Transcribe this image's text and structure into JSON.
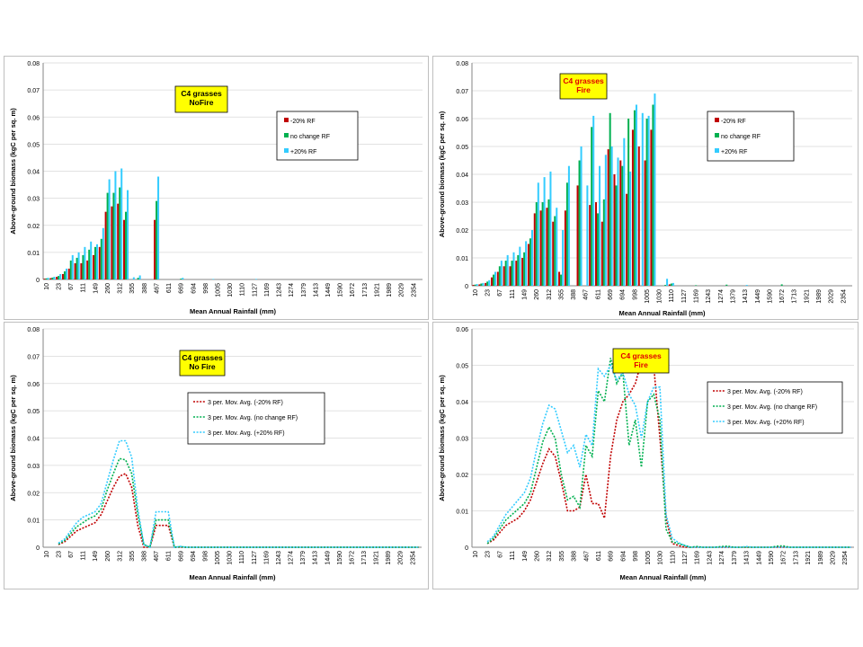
{
  "colors": {
    "minus": "#C00000",
    "nochange": "#00B050",
    "plus": "#33CCFF",
    "label_bg": "#FFFF00",
    "fire_text": "#E00000",
    "grid": "#D9D9D9",
    "axis": "#868686",
    "panel_border": "#BFBFBF"
  },
  "legend_labels": {
    "bar": [
      "-20% RF",
      "no change RF",
      "+20% RF"
    ],
    "line": [
      "3 per. Mov. Avg. (-20% RF)",
      "3 per. Mov. Avg. (no change RF)",
      "3 per. Mov. Avg. (+20% RF)"
    ]
  },
  "chart_data": [
    {
      "id": "bar-nofire",
      "type": "bar",
      "label_lines": [
        "C4 grasses",
        "NoFire"
      ],
      "xlabel": "Mean Annual Rainfall (mm)",
      "ylabel": "Above-ground biomass (kgC per sq. m)",
      "ylim": [
        0,
        0.08
      ],
      "yticks": [
        "0",
        "0.01",
        "0.02",
        "0.03",
        "0.04",
        "0.05",
        "0.06",
        "0.07",
        "0.08"
      ],
      "xtick_labels": [
        "10",
        "23",
        "67",
        "111",
        "149",
        "260",
        "312",
        "355",
        "388",
        "467",
        "611",
        "669",
        "694",
        "998",
        "1005",
        "1030",
        "1110",
        "1127",
        "1169",
        "1243",
        "1274",
        "1379",
        "1413",
        "1449",
        "1590",
        "1672",
        "1713",
        "1921",
        "1989",
        "2029",
        "2354"
      ],
      "n_categories": 62,
      "series": [
        {
          "legend_index": 0,
          "values": [
            0.0003,
            0.0005,
            0.001,
            0.002,
            0.004,
            0.006,
            0.006,
            0.007,
            0.009,
            0.012,
            0.025,
            0.027,
            0.028,
            0.022,
            0,
            0,
            0,
            0,
            0.022,
            0,
            0,
            0,
            0,
            0,
            0,
            0,
            0,
            0,
            0,
            0,
            0,
            0,
            0,
            0,
            0,
            0,
            0,
            0,
            0,
            0,
            0,
            0,
            0,
            0,
            0,
            0,
            0,
            0,
            0,
            0,
            0,
            0,
            0,
            0,
            0,
            0,
            0,
            0,
            0,
            0,
            0,
            0
          ]
        },
        {
          "legend_index": 1,
          "values": [
            0.0004,
            0.0007,
            0.0013,
            0.003,
            0.007,
            0.008,
            0.009,
            0.011,
            0.012,
            0.015,
            0.032,
            0.032,
            0.034,
            0.025,
            0,
            0.0006,
            0,
            0,
            0.029,
            0,
            0,
            0,
            0.0003,
            0,
            0,
            0,
            0,
            0,
            0,
            0,
            0,
            0,
            0,
            0,
            0,
            0,
            0,
            0,
            0,
            0,
            0,
            0,
            0,
            0,
            0,
            0,
            0,
            0,
            0,
            0,
            0,
            0,
            0,
            0,
            0,
            0,
            0,
            0,
            0,
            0,
            0,
            0
          ]
        },
        {
          "legend_index": 2,
          "values": [
            0.0006,
            0.001,
            0.002,
            0.004,
            0.009,
            0.01,
            0.012,
            0.014,
            0.013,
            0.019,
            0.037,
            0.04,
            0.041,
            0.033,
            0.0008,
            0.0015,
            0,
            0,
            0.038,
            0,
            0,
            0,
            0.0006,
            0,
            0,
            0,
            0,
            0.0002,
            0,
            0,
            0,
            0,
            0,
            0,
            0.0002,
            0,
            0,
            0,
            0,
            0,
            0,
            0,
            0,
            0,
            0,
            0,
            0,
            0,
            0,
            0,
            0,
            0,
            0,
            0,
            0,
            0,
            0,
            0,
            0,
            0,
            0,
            0
          ]
        }
      ]
    },
    {
      "id": "bar-fire",
      "type": "bar",
      "label_lines": [
        "C4 grasses",
        "Fire"
      ],
      "xlabel": "Mean Annual Rainfall (mm)",
      "ylabel": "Above-ground biomass (kgC per sq. m)",
      "ylim": [
        0,
        0.08
      ],
      "yticks": [
        "0",
        "0.01",
        "0.02",
        "0.03",
        "0.04",
        "0.05",
        "0.06",
        "0.07",
        "0.08"
      ],
      "xtick_labels": [
        "10",
        "23",
        "67",
        "111",
        "149",
        "260",
        "312",
        "355",
        "388",
        "467",
        "611",
        "669",
        "694",
        "998",
        "1005",
        "1030",
        "1110",
        "1127",
        "1169",
        "1243",
        "1274",
        "1379",
        "1413",
        "1449",
        "1590",
        "1672",
        "1713",
        "1921",
        "1989",
        "2029",
        "2354"
      ],
      "n_categories": 62,
      "series": [
        {
          "legend_index": 0,
          "values": [
            0.0003,
            0.0005,
            0.001,
            0.003,
            0.005,
            0.007,
            0.007,
            0.009,
            0.01,
            0.015,
            0.026,
            0.027,
            0.028,
            0.023,
            0.005,
            0.027,
            0,
            0.036,
            0,
            0.029,
            0.03,
            0.023,
            0.049,
            0.04,
            0.045,
            0.033,
            0.056,
            0.05,
            0.045,
            0.056,
            0,
            0,
            0.0005,
            0,
            0,
            0,
            0,
            0,
            0,
            0,
            0,
            0,
            0,
            0,
            0,
            0,
            0,
            0,
            0,
            0,
            0,
            0,
            0,
            0,
            0,
            0,
            0,
            0,
            0,
            0,
            0,
            0
          ]
        },
        {
          "legend_index": 1,
          "values": [
            0.0004,
            0.0008,
            0.0015,
            0.004,
            0.007,
            0.009,
            0.009,
            0.011,
            0.012,
            0.017,
            0.03,
            0.03,
            0.031,
            0.025,
            0.004,
            0.037,
            0,
            0.045,
            0,
            0.057,
            0.026,
            0.031,
            0.062,
            0.036,
            0.043,
            0.06,
            0.063,
            0,
            0.06,
            0.065,
            0,
            0.0003,
            0.0008,
            0,
            0,
            0,
            0.0002,
            0,
            0,
            0,
            0,
            0.0004,
            0,
            0,
            0,
            0,
            0,
            0,
            0,
            0,
            0.0005,
            0,
            0,
            0,
            0,
            0,
            0,
            0,
            0,
            0,
            0,
            0
          ]
        },
        {
          "legend_index": 2,
          "values": [
            0.0006,
            0.001,
            0.002,
            0.005,
            0.009,
            0.011,
            0.012,
            0.014,
            0.016,
            0.02,
            0.037,
            0.039,
            0.041,
            0.028,
            0.02,
            0.043,
            0,
            0.05,
            0.036,
            0.061,
            0.043,
            0.047,
            0.05,
            0.046,
            0.053,
            0.041,
            0.065,
            0.062,
            0.061,
            0.069,
            0,
            0.0025,
            0.001,
            0,
            0,
            0,
            0,
            0,
            0,
            0,
            0,
            0,
            0,
            0,
            0.0003,
            0,
            0,
            0,
            0,
            0,
            0,
            0,
            0,
            0,
            0,
            0,
            0,
            0,
            0,
            0,
            0,
            0
          ]
        }
      ]
    },
    {
      "id": "line-nofire",
      "type": "line",
      "label_lines": [
        "C4 grasses",
        "No Fire"
      ],
      "xlabel": "Mean Annual Rainfall (mm)",
      "ylabel": "Above-ground biomass (kgC per sq. m)",
      "ylim": [
        0,
        0.08
      ],
      "yticks": [
        "0",
        "0.01",
        "0.02",
        "0.03",
        "0.04",
        "0.05",
        "0.06",
        "0.07",
        "0.08"
      ],
      "xtick_labels": [
        "10",
        "23",
        "67",
        "111",
        "149",
        "260",
        "312",
        "355",
        "388",
        "467",
        "611",
        "669",
        "694",
        "998",
        "1005",
        "1030",
        "1110",
        "1127",
        "1169",
        "1243",
        "1274",
        "1379",
        "1413",
        "1449",
        "1590",
        "1672",
        "1713",
        "1921",
        "1989",
        "2029",
        "2354"
      ],
      "n_categories": 62,
      "series": [
        {
          "legend_index": 0,
          "values": [
            null,
            null,
            0.001,
            0.002,
            0.004,
            0.006,
            0.007,
            0.008,
            0.009,
            0.012,
            0.017,
            0.022,
            0.026,
            0.027,
            0.022,
            0.008,
            0,
            0,
            0.008,
            0.008,
            0.008,
            0,
            0,
            0,
            0,
            0,
            0,
            0,
            0,
            0,
            0,
            0,
            0,
            0,
            0,
            0,
            0,
            0,
            0,
            0,
            0,
            0,
            0,
            0,
            0,
            0,
            0,
            0,
            0,
            0,
            0,
            0,
            0,
            0,
            0,
            0,
            0,
            0,
            0,
            0,
            0,
            0
          ]
        },
        {
          "legend_index": 1,
          "values": [
            null,
            null,
            0.0012,
            0.0025,
            0.005,
            0.0075,
            0.009,
            0.0105,
            0.0115,
            0.014,
            0.021,
            0.027,
            0.0325,
            0.032,
            0.027,
            0.012,
            0.001,
            0,
            0.01,
            0.01,
            0.01,
            0,
            0.0002,
            0,
            0,
            0,
            0,
            0,
            0,
            0,
            0,
            0,
            0,
            0,
            0,
            0,
            0,
            0,
            0,
            0,
            0,
            0,
            0,
            0,
            0,
            0,
            0,
            0,
            0,
            0,
            0,
            0,
            0,
            0,
            0,
            0,
            0,
            0,
            0,
            0,
            0,
            0
          ]
        },
        {
          "legend_index": 2,
          "values": [
            null,
            null,
            0.0015,
            0.003,
            0.006,
            0.009,
            0.011,
            0.012,
            0.013,
            0.016,
            0.024,
            0.032,
            0.039,
            0.039,
            0.033,
            0.014,
            0.001,
            0,
            0.013,
            0.013,
            0.013,
            0,
            0.0003,
            0,
            0,
            0,
            0,
            0,
            0,
            0,
            0,
            0,
            0,
            0,
            0,
            0,
            0,
            0,
            0,
            0,
            0,
            0,
            0,
            0,
            0,
            0,
            0,
            0,
            0,
            0,
            0,
            0,
            0,
            0,
            0,
            0,
            0,
            0,
            0,
            0,
            0,
            0
          ]
        }
      ]
    },
    {
      "id": "line-fire",
      "type": "line",
      "label_lines": [
        "C4 grasses",
        "Fire"
      ],
      "xlabel": "Mean Annual Rainfall (mm)",
      "ylabel": "Above-ground biomass (kgC per sq. m)",
      "ylim": [
        0,
        0.06
      ],
      "yticks": [
        "0",
        "0.01",
        "0.02",
        "0.03",
        "0.04",
        "0.05",
        "0.06"
      ],
      "xtick_labels": [
        "10",
        "23",
        "67",
        "111",
        "149",
        "260",
        "312",
        "355",
        "388",
        "467",
        "611",
        "669",
        "694",
        "998",
        "1005",
        "1030",
        "1110",
        "1127",
        "1169",
        "1243",
        "1274",
        "1379",
        "1413",
        "1449",
        "1590",
        "1672",
        "1713",
        "1921",
        "1989",
        "2029",
        "2354"
      ],
      "n_categories": 62,
      "series": [
        {
          "legend_index": 0,
          "values": [
            null,
            null,
            0.001,
            0.002,
            0.004,
            0.006,
            0.007,
            0.008,
            0.01,
            0.013,
            0.018,
            0.023,
            0.027,
            0.025,
            0.018,
            0.01,
            0.01,
            0.011,
            0.02,
            0.012,
            0.012,
            0.008,
            0.025,
            0.035,
            0.04,
            0.042,
            0.045,
            0.051,
            0.051,
            0.05,
            0.03,
            0.008,
            0.001,
            0.0005,
            0,
            0,
            0,
            0,
            0,
            0,
            0,
            0,
            0,
            0,
            0,
            0,
            0,
            0,
            0,
            0,
            0,
            0,
            0,
            0,
            0,
            0,
            0,
            0,
            0,
            0,
            0,
            0
          ]
        },
        {
          "legend_index": 1,
          "values": [
            null,
            null,
            0.001,
            0.0025,
            0.005,
            0.0075,
            0.009,
            0.0105,
            0.012,
            0.015,
            0.022,
            0.029,
            0.033,
            0.03,
            0.02,
            0.013,
            0.014,
            0.011,
            0.028,
            0.025,
            0.043,
            0.04,
            0.052,
            0.045,
            0.048,
            0.028,
            0.035,
            0.022,
            0.04,
            0.042,
            0.035,
            0.005,
            0.0015,
            0.001,
            0.0005,
            0,
            0.0002,
            0,
            0,
            0,
            0.0002,
            0.0003,
            0,
            0,
            0,
            0,
            0,
            0,
            0,
            0.0003,
            0.0004,
            0,
            0,
            0,
            0,
            0,
            0,
            0,
            0,
            0,
            0,
            0
          ]
        },
        {
          "legend_index": 2,
          "values": [
            null,
            null,
            0.0015,
            0.003,
            0.006,
            0.009,
            0.011,
            0.013,
            0.015,
            0.019,
            0.027,
            0.034,
            0.039,
            0.038,
            0.032,
            0.026,
            0.028,
            0.022,
            0.031,
            0.028,
            0.049,
            0.047,
            0.05,
            0.046,
            0.048,
            0.042,
            0.039,
            0.03,
            0.04,
            0.044,
            0.044,
            0.009,
            0.0025,
            0.0013,
            0.0005,
            0,
            0,
            0,
            0,
            0,
            0,
            0,
            0,
            0,
            0.0002,
            0,
            0,
            0,
            0,
            0,
            0,
            0,
            0,
            0,
            0,
            0,
            0,
            0,
            0,
            0,
            0,
            0
          ]
        }
      ]
    }
  ]
}
